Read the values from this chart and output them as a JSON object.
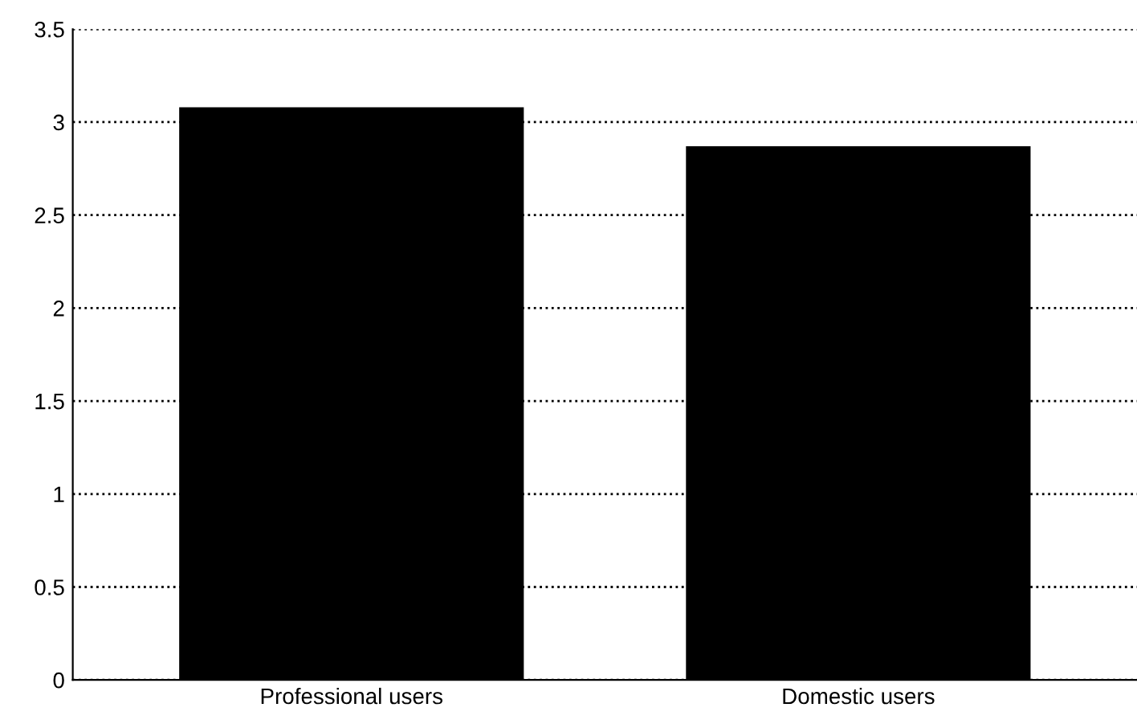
{
  "chart_data": {
    "type": "bar",
    "categories": [
      "Professional users",
      "Domestic users"
    ],
    "values": [
      3.08,
      2.87
    ],
    "color": "#000000",
    "ylim": [
      0,
      3.5
    ],
    "yticks": [
      0,
      {
        "value": 0.5,
        "label": "0.5"
      },
      1,
      {
        "value": 1.5,
        "label": "1.5"
      },
      2,
      {
        "value": 2.5,
        "label": "2.5"
      },
      3,
      {
        "value": 3.5,
        "label": "3.5"
      }
    ],
    "grid": "y",
    "line_style": "dotted"
  }
}
